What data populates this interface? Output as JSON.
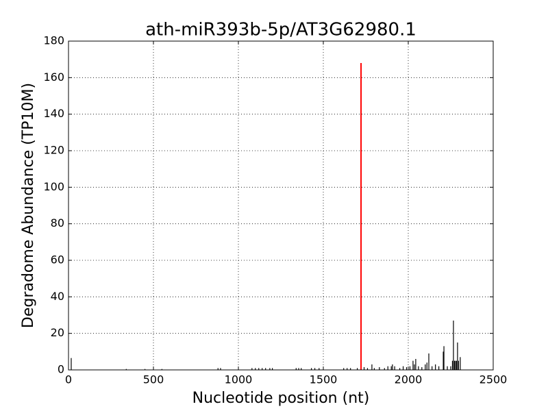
{
  "chart_data": {
    "type": "stem",
    "title": "ath-miR393b-5p/AT3G62980.1",
    "xlabel": "Nucleotide position (nt)",
    "ylabel": "Degradome Abundance (TP10M)",
    "xlim": [
      0,
      2500
    ],
    "xticks": [
      0,
      500,
      1000,
      1500,
      2000,
      2500
    ],
    "ylim": [
      0,
      180
    ],
    "yticks": [
      0,
      20,
      40,
      60,
      80,
      100,
      120,
      140,
      160,
      180
    ],
    "grid": true,
    "series": [
      {
        "color": "#000000",
        "x": [
          16,
          340,
          450,
          550,
          880,
          895,
          1080,
          1100,
          1120,
          1140,
          1160,
          1185,
          1200,
          1340,
          1355,
          1370,
          1430,
          1450,
          1475,
          1620,
          1640,
          1660,
          1700,
          1740,
          1760,
          1786,
          1800,
          1830,
          1860,
          1880,
          1900,
          1907,
          1920,
          1950,
          1970,
          1990,
          2010,
          2028,
          2036,
          2044,
          2060,
          2080,
          2100,
          2110,
          2121,
          2140,
          2160,
          2180,
          2206,
          2210,
          2230,
          2250,
          2260,
          2266,
          2272,
          2278,
          2284,
          2290,
          2296,
          2306
        ],
        "values": [
          6.5,
          0.5,
          0.5,
          0.5,
          1,
          1,
          1,
          1,
          1,
          1,
          1,
          1,
          1,
          1,
          1,
          1,
          1,
          1,
          1,
          1,
          1,
          1,
          1,
          1.5,
          1,
          3,
          1,
          1.5,
          1,
          2,
          2,
          3,
          2,
          1,
          2,
          1.5,
          2,
          5,
          3,
          6,
          2,
          1.5,
          3,
          4,
          9,
          2,
          3,
          2,
          10,
          13,
          2,
          2,
          5,
          27,
          5,
          5,
          5,
          15,
          5,
          7
        ]
      },
      {
        "color": "#ff0000",
        "x": [
          1722
        ],
        "values": [
          168
        ]
      }
    ]
  }
}
